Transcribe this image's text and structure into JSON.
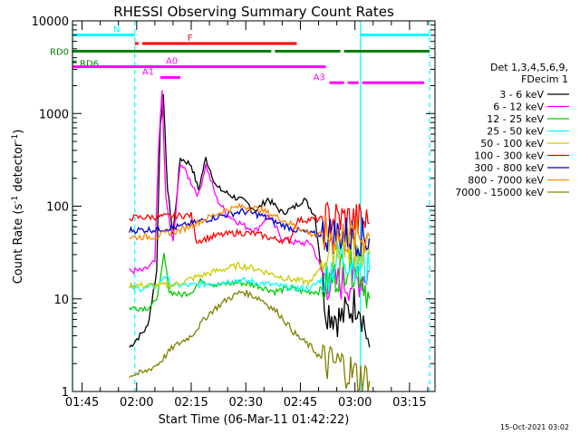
{
  "chart_data": {
    "type": "line",
    "title": "RHESSI Observing Summary Count Rates",
    "xlabel": "Start Time (06-Mar-11 01:42:22)",
    "ylabel": "Count Rate (s⁻¹ detector⁻¹)",
    "ylabel_parts": [
      "Count Rate (s",
      "-1",
      " detector",
      "-1",
      ")"
    ],
    "y_scale": "log",
    "xlim": [
      "01:42:22",
      "03:22:00"
    ],
    "ylim": [
      1,
      10000
    ],
    "x_tick_labels": [
      "01:45",
      "02:00",
      "02:15",
      "02:30",
      "02:45",
      "03:00",
      "03:15"
    ],
    "y_tick_labels": [
      "1",
      "10",
      "100",
      "1000",
      "10000"
    ],
    "legend_title": [
      "Det 1,3,4,5,6,9,",
      "FDecim 1"
    ],
    "legend_position": "right",
    "footer_date": "15-Oct-2021 03:02",
    "series": [
      {
        "name": "3 - 6 keV",
        "color": "#000000",
        "points": [
          [
            "01:58:00",
            3
          ],
          [
            "02:03:00",
            5
          ],
          [
            "02:05:30",
            20
          ],
          [
            "02:06:30",
            800
          ],
          [
            "02:07:20",
            1500
          ],
          [
            "02:08:30",
            150
          ],
          [
            "02:10:00",
            50
          ],
          [
            "02:12:00",
            330
          ],
          [
            "02:15:00",
            280
          ],
          [
            "02:17:00",
            150
          ],
          [
            "02:19:00",
            330
          ],
          [
            "02:22:00",
            160
          ],
          [
            "02:26:00",
            130
          ],
          [
            "02:30:00",
            110
          ],
          [
            "02:33:00",
            90
          ],
          [
            "02:36:00",
            120
          ],
          [
            "02:40:00",
            85
          ],
          [
            "02:43:00",
            95
          ],
          [
            "02:46:00",
            120
          ],
          [
            "02:49:00",
            80
          ],
          [
            "02:52:00",
            8
          ],
          [
            "02:56:00",
            6
          ],
          [
            "03:01:00",
            10
          ],
          [
            "03:04:00",
            3
          ]
        ]
      },
      {
        "name": "6 - 12 keV",
        "color": "#ff00ff",
        "points": [
          [
            "01:58:00",
            20
          ],
          [
            "02:02:00",
            20
          ],
          [
            "02:05:00",
            25
          ],
          [
            "02:06:00",
            400
          ],
          [
            "02:07:00",
            1800
          ],
          [
            "02:08:00",
            120
          ],
          [
            "02:10:00",
            40
          ],
          [
            "02:12:00",
            300
          ],
          [
            "02:15:00",
            180
          ],
          [
            "02:17:00",
            130
          ],
          [
            "02:19:00",
            280
          ],
          [
            "02:22:00",
            120
          ],
          [
            "02:25:00",
            80
          ],
          [
            "02:30:00",
            60
          ],
          [
            "02:33:00",
            55
          ],
          [
            "02:36:00",
            80
          ],
          [
            "02:40:00",
            45
          ],
          [
            "02:44:00",
            40
          ],
          [
            "02:48:00",
            40
          ],
          [
            "02:50:00",
            25
          ],
          [
            "02:52:00",
            15
          ],
          [
            "03:00:00",
            15
          ],
          [
            "03:04:00",
            20
          ]
        ]
      },
      {
        "name": "12 - 25 keV",
        "color": "#00cc00",
        "points": [
          [
            "01:58:00",
            8
          ],
          [
            "02:03:00",
            8
          ],
          [
            "02:05:00",
            9
          ],
          [
            "02:06:30",
            15
          ],
          [
            "02:07:30",
            30
          ],
          [
            "02:09:00",
            12
          ],
          [
            "02:12:00",
            11
          ],
          [
            "02:15:00",
            12
          ],
          [
            "02:18:00",
            16
          ],
          [
            "02:22:00",
            14
          ],
          [
            "02:28:00",
            15
          ],
          [
            "02:33:00",
            14
          ],
          [
            "02:38:00",
            12
          ],
          [
            "02:42:00",
            13
          ],
          [
            "02:46:00",
            12
          ],
          [
            "02:50:00",
            12
          ],
          [
            "02:53:00",
            15
          ],
          [
            "02:58:00",
            25
          ],
          [
            "03:02:00",
            18
          ],
          [
            "03:04:00",
            10
          ]
        ]
      },
      {
        "name": "25 - 50 keV",
        "color": "#00ffff",
        "points": [
          [
            "01:58:00",
            13
          ],
          [
            "02:03:00",
            13
          ],
          [
            "02:06:00",
            14
          ],
          [
            "02:07:30",
            18
          ],
          [
            "02:10:00",
            14
          ],
          [
            "02:16:00",
            14
          ],
          [
            "02:22:00",
            15
          ],
          [
            "02:28:00",
            16
          ],
          [
            "02:33:00",
            15
          ],
          [
            "02:38:00",
            14
          ],
          [
            "02:43:00",
            13
          ],
          [
            "02:48:00",
            13
          ],
          [
            "02:52:00",
            18
          ],
          [
            "02:56:00",
            30
          ],
          [
            "03:00:00",
            25
          ],
          [
            "03:04:00",
            20
          ]
        ]
      },
      {
        "name": "50 - 100 keV",
        "color": "#cccc00",
        "points": [
          [
            "01:58:00",
            14
          ],
          [
            "02:03:00",
            14
          ],
          [
            "02:10:00",
            14
          ],
          [
            "02:16:00",
            17
          ],
          [
            "02:22:00",
            20
          ],
          [
            "02:28:00",
            23
          ],
          [
            "02:33:00",
            21
          ],
          [
            "02:38:00",
            18
          ],
          [
            "02:43:00",
            16
          ],
          [
            "02:48:00",
            15
          ],
          [
            "02:52:00",
            30
          ],
          [
            "02:56:00",
            40
          ],
          [
            "03:00:00",
            35
          ],
          [
            "03:04:00",
            30
          ]
        ]
      },
      {
        "name": "100 - 300 keV",
        "color": "#ff0000",
        "points": [
          [
            "01:58:00",
            75
          ],
          [
            "02:03:00",
            76
          ],
          [
            "02:10:00",
            78
          ],
          [
            "02:15:00",
            80
          ],
          [
            "02:16:30",
            42
          ],
          [
            "02:22:00",
            48
          ],
          [
            "02:28:00",
            52
          ],
          [
            "02:33:00",
            50
          ],
          [
            "02:38:00",
            44
          ],
          [
            "02:42:00",
            42
          ],
          [
            "02:44:00",
            70
          ],
          [
            "02:48:00",
            72
          ],
          [
            "02:52:00",
            72
          ],
          [
            "02:56:00",
            72
          ],
          [
            "03:00:00",
            70
          ],
          [
            "03:04:00",
            65
          ]
        ]
      },
      {
        "name": "300 - 800 keV",
        "color": "#0000cc",
        "points": [
          [
            "01:58:00",
            55
          ],
          [
            "02:05:00",
            56
          ],
          [
            "02:12:00",
            60
          ],
          [
            "02:18:00",
            70
          ],
          [
            "02:24:00",
            80
          ],
          [
            "02:29:00",
            88
          ],
          [
            "02:34:00",
            80
          ],
          [
            "02:39:00",
            65
          ],
          [
            "02:44:00",
            55
          ],
          [
            "02:48:00",
            50
          ],
          [
            "02:52:00",
            50
          ],
          [
            "02:56:00",
            50
          ],
          [
            "03:00:00",
            48
          ],
          [
            "03:04:00",
            45
          ]
        ]
      },
      {
        "name": "800 - 7000 keV",
        "color": "#ff8800",
        "points": [
          [
            "01:58:00",
            46
          ],
          [
            "02:05:00",
            47
          ],
          [
            "02:12:00",
            55
          ],
          [
            "02:18:00",
            70
          ],
          [
            "02:24:00",
            90
          ],
          [
            "02:29:00",
            100
          ],
          [
            "02:34:00",
            92
          ],
          [
            "02:39:00",
            75
          ],
          [
            "02:44:00",
            60
          ],
          [
            "02:48:00",
            50
          ],
          [
            "02:52:00",
            48
          ],
          [
            "02:56:00",
            48
          ],
          [
            "03:00:00",
            47
          ],
          [
            "03:04:00",
            47
          ]
        ]
      },
      {
        "name": "7000 - 15000 keV",
        "color": "#808000",
        "points": [
          [
            "01:58:00",
            1.5
          ],
          [
            "02:02:00",
            1.6
          ],
          [
            "02:06:00",
            2
          ],
          [
            "02:10:00",
            3
          ],
          [
            "02:15:00",
            4
          ],
          [
            "02:20:00",
            7
          ],
          [
            "02:25:00",
            10
          ],
          [
            "02:29:00",
            12
          ],
          [
            "02:34:00",
            10
          ],
          [
            "02:39:00",
            7
          ],
          [
            "02:44:00",
            4
          ],
          [
            "02:48:00",
            3
          ],
          [
            "02:52:00",
            2
          ],
          [
            "02:56:00",
            2
          ],
          [
            "03:00:00",
            1.5
          ],
          [
            "03:04:00",
            1.3
          ]
        ]
      }
    ],
    "flags": [
      {
        "label": "N",
        "color": "#00ffff",
        "segments": [
          [
            "01:42:22",
            "01:59:30"
          ],
          [
            "03:01:30",
            "03:20:30"
          ]
        ],
        "level": 7050
      },
      {
        "label": "F",
        "color": "#ff0000",
        "segments": [
          [
            "01:59:30",
            "02:00:30"
          ],
          [
            "02:01:30",
            "02:44:00"
          ]
        ],
        "level": 5700
      },
      {
        "label": "RD0",
        "color": "#008000",
        "segments": [
          [
            "01:42:22",
            "02:17:00"
          ],
          [
            "02:17:00",
            "02:37:00"
          ],
          [
            "02:38:00",
            "02:56:00"
          ],
          [
            "02:57:00",
            "03:20:30"
          ]
        ],
        "level": 4700
      },
      {
        "label": "RD6",
        "color": "#008000",
        "segments": [
          [
            "01:42:22",
            "01:43:30"
          ]
        ],
        "level": 3600
      },
      {
        "label": "A0",
        "color": "#ff00ff",
        "segments": [
          [
            "01:42:22",
            "02:52:00"
          ]
        ],
        "level": 3200
      },
      {
        "label": "A1",
        "color": "#ff00ff",
        "segments": [
          [
            "02:06:30",
            "02:07:30"
          ],
          [
            "02:07:30",
            "02:12:00"
          ]
        ],
        "level": 2450
      },
      {
        "label": "A3",
        "color": "#ff00ff",
        "segments": [
          [
            "02:53:00",
            "02:57:00"
          ],
          [
            "02:58:00",
            "02:59:00"
          ],
          [
            "02:59:00",
            "03:01:00"
          ],
          [
            "03:02:00",
            "03:19:00"
          ]
        ],
        "level": 2150
      }
    ],
    "vlines": [
      {
        "time": "01:42:22",
        "color": "#00ffff",
        "style": "solid"
      },
      {
        "time": "01:59:30",
        "color": "#00ffff",
        "style": "dashed"
      },
      {
        "time": "03:01:30",
        "color": "#00ffff",
        "style": "solid"
      },
      {
        "time": "03:20:30",
        "color": "#00ffff",
        "style": "dashed"
      }
    ],
    "grid": false
  }
}
